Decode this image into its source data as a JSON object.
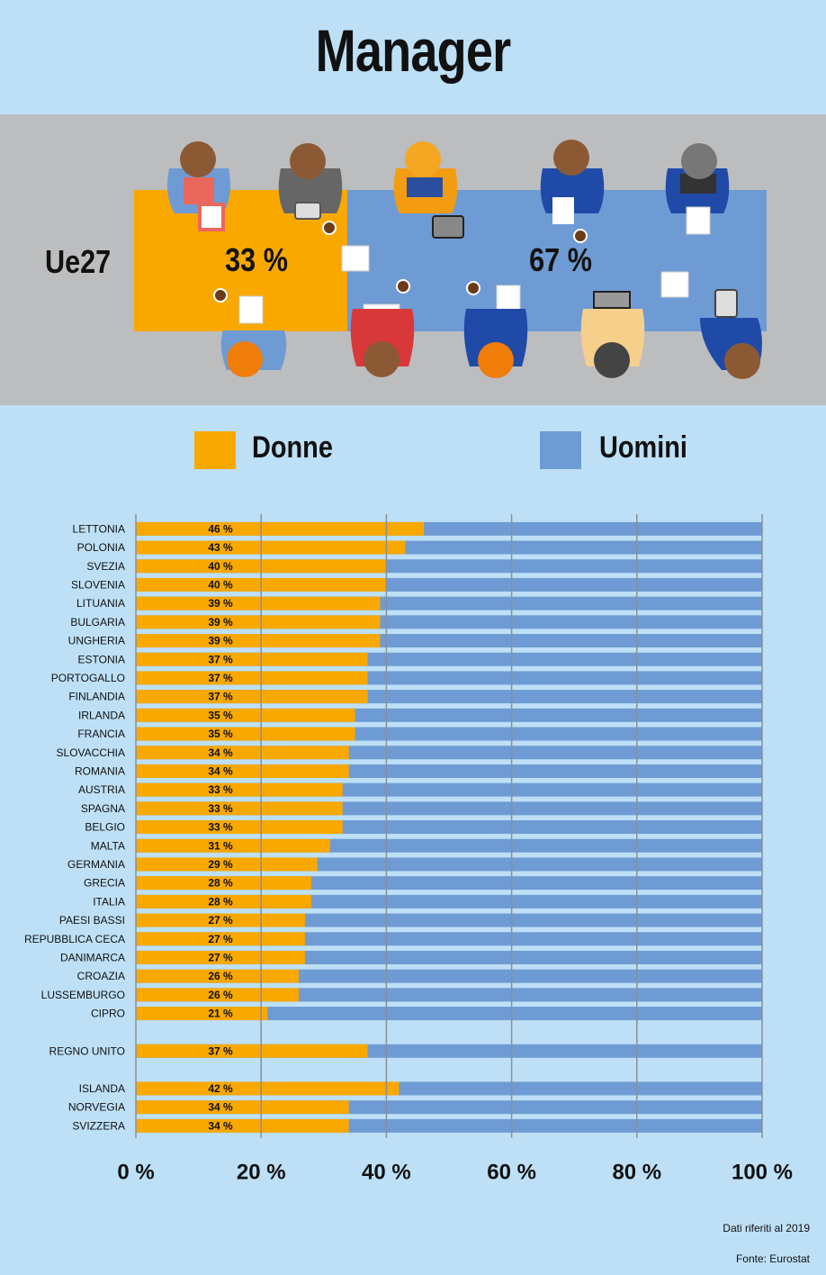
{
  "title": "Manager",
  "hero": {
    "region_label": "Ue27",
    "donne_pct": "33 %",
    "uomini_pct": "67 %"
  },
  "legend": {
    "donne_label": "Donne",
    "uomini_label": "Uomini"
  },
  "colors": {
    "donne": "#f9a800",
    "uomini": "#6e9bd4",
    "background": "#bde0f6",
    "hero_band": "#bcbdbf"
  },
  "footnotes": {
    "date_note": "Dati riferiti al 2019",
    "source": "Fonte: Eurostat"
  },
  "chart_data": {
    "type": "bar",
    "orientation": "horizontal",
    "stacked": true,
    "xlim": [
      0,
      100
    ],
    "x_ticks": [
      "0 %",
      "20 %",
      "40 %",
      "60 %",
      "80 %",
      "100 %"
    ],
    "grid": true,
    "legend": [
      "Donne",
      "Uomini"
    ],
    "groups": [
      {
        "categories": [
          "LETTONIA",
          "POLONIA",
          "SVEZIA",
          "SLOVENIA",
          "LITUANIA",
          "BULGARIA",
          "UNGHERIA",
          "ESTONIA",
          "PORTOGALLO",
          "FINLANDIA",
          "IRLANDA",
          "FRANCIA",
          "SLOVACCHIA",
          "ROMANIA",
          "AUSTRIA",
          "SPAGNA",
          "BELGIO",
          "MALTA",
          "GERMANIA",
          "GRECIA",
          "ITALIA",
          "PAESI BASSI",
          "REPUBBLICA CECA",
          "DANIMARCA",
          "CROAZIA",
          "LUSSEMBURGO",
          "CIPRO"
        ],
        "donne": [
          46,
          43,
          40,
          40,
          39,
          39,
          39,
          37,
          37,
          37,
          35,
          35,
          34,
          34,
          33,
          33,
          33,
          31,
          29,
          28,
          28,
          27,
          27,
          27,
          26,
          26,
          21
        ],
        "labels": [
          "46 %",
          "43 %",
          "40 %",
          "40 %",
          "39 %",
          "39 %",
          "39 %",
          "37 %",
          "37 %",
          "37 %",
          "35 %",
          "35 %",
          "34 %",
          "34 %",
          "33 %",
          "33 %",
          "33 %",
          "31 %",
          "29 %",
          "28 %",
          "28 %",
          "27 %",
          "27 %",
          "27 %",
          "26 %",
          "26 %",
          "21 %"
        ]
      },
      {
        "categories": [
          "REGNO UNITO"
        ],
        "donne": [
          37
        ],
        "labels": [
          "37 %"
        ]
      },
      {
        "categories": [
          "ISLANDA",
          "NORVEGIA",
          "SVIZZERA"
        ],
        "donne": [
          42,
          34,
          34
        ],
        "labels": [
          "42 %",
          "34 %",
          "34 %"
        ]
      }
    ]
  }
}
